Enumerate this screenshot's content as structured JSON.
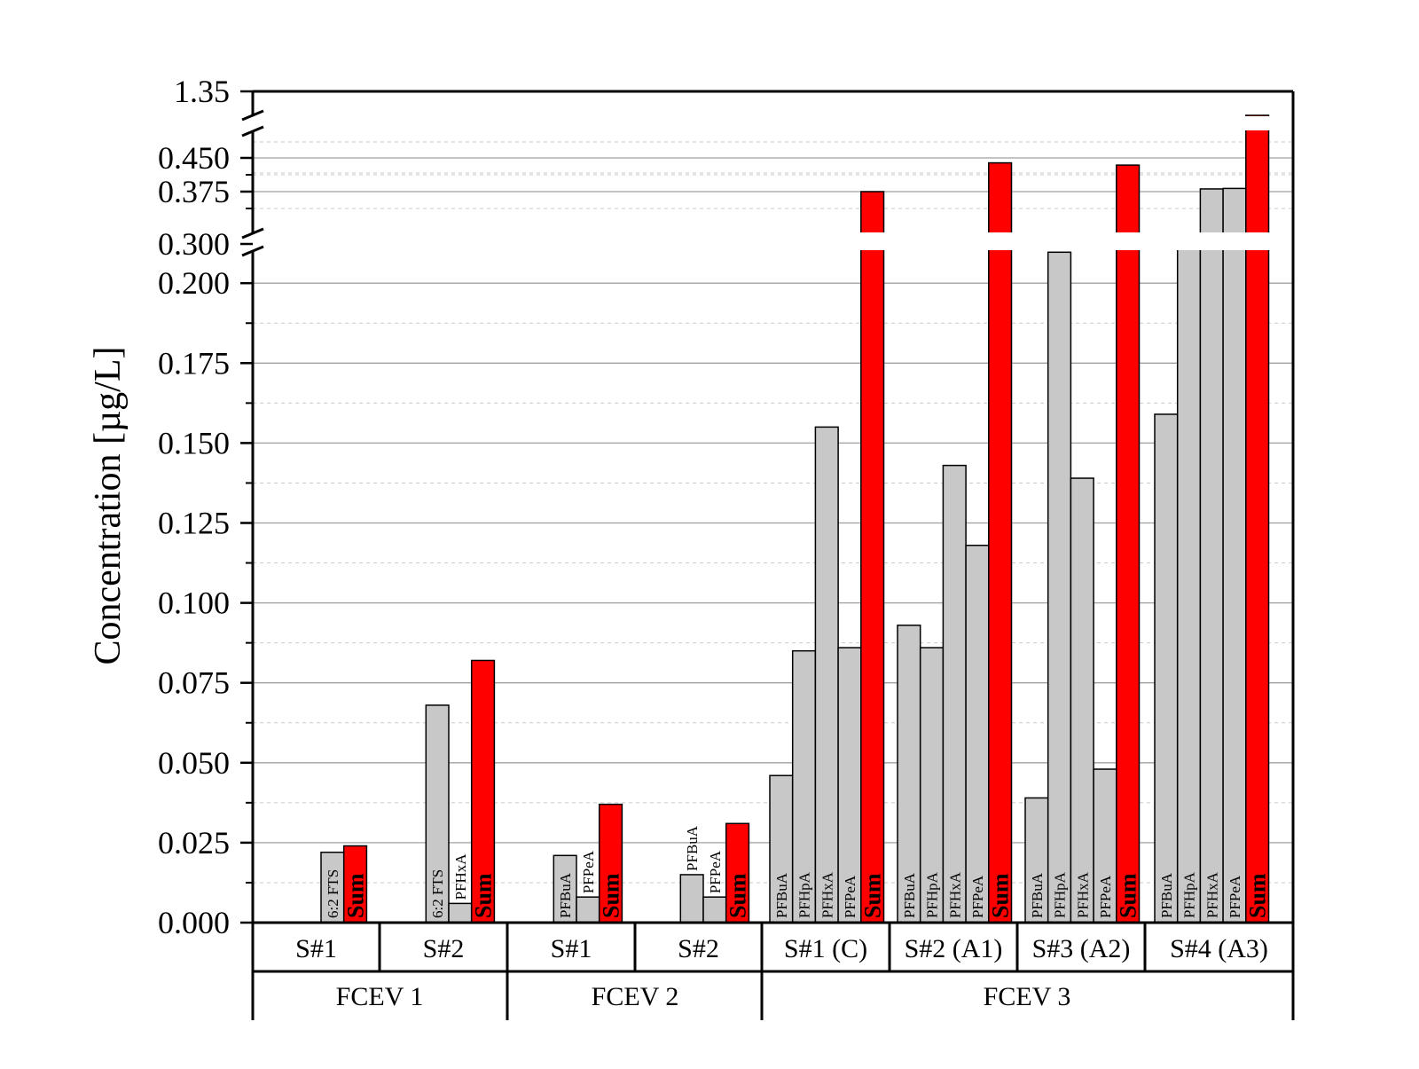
{
  "chart_data": {
    "type": "bar",
    "title": "",
    "ylabel": "Concentration [µg/L]",
    "ylim": [
      0,
      1.35
    ],
    "axis_breaks": [
      [
        0.2,
        0.3
      ],
      [
        0.45,
        1.35
      ]
    ],
    "y_ticks_lower": [
      "0.000",
      "0.025",
      "0.050",
      "0.075",
      "0.100",
      "0.125",
      "0.150",
      "0.175",
      "0.200"
    ],
    "y_ticks_middle": [
      "0.300",
      "0.375",
      "0.450"
    ],
    "y_ticks_upper": [
      "1.35"
    ],
    "colors": {
      "compound": "#c8c8c8",
      "sum": "#ff0000",
      "grid": "#9a9a9a"
    },
    "groups": [
      {
        "label": "FCEV 1",
        "samples": [
          {
            "label": "S#1",
            "bars": [
              {
                "name": "6:2 FTS",
                "value": 0.022
              },
              {
                "name": "Sum",
                "value": 0.024
              }
            ]
          },
          {
            "label": "S#2",
            "bars": [
              {
                "name": "6:2 FTS",
                "value": 0.068
              },
              {
                "name": "PFHxA",
                "value": 0.006
              },
              {
                "name": "Sum",
                "value": 0.082
              }
            ]
          }
        ]
      },
      {
        "label": "FCEV 2",
        "samples": [
          {
            "label": "S#1",
            "bars": [
              {
                "name": "PFBuA",
                "value": 0.021
              },
              {
                "name": "PFPeA",
                "value": 0.008
              },
              {
                "name": "Sum",
                "value": 0.037
              }
            ]
          },
          {
            "label": "S#2",
            "bars": [
              {
                "name": "PFBuA",
                "value": 0.015
              },
              {
                "name": "PFPeA",
                "value": 0.008
              },
              {
                "name": "Sum",
                "value": 0.031
              }
            ]
          }
        ]
      },
      {
        "label": "FCEV 3",
        "samples": [
          {
            "label": "S#1 (C)",
            "bars": [
              {
                "name": "PFBuA",
                "value": 0.046
              },
              {
                "name": "PFHpA",
                "value": 0.085
              },
              {
                "name": "PFHxA",
                "value": 0.155
              },
              {
                "name": "PFPeA",
                "value": 0.086
              },
              {
                "name": "Sum",
                "value": 0.375
              }
            ]
          },
          {
            "label": "S#2 (A1)",
            "bars": [
              {
                "name": "PFBuA",
                "value": 0.093
              },
              {
                "name": "PFHpA",
                "value": 0.086
              },
              {
                "name": "PFHxA",
                "value": 0.143
              },
              {
                "name": "PFPeA",
                "value": 0.118
              },
              {
                "name": "Sum",
                "value": 0.439
              }
            ]
          },
          {
            "label": "S#3 (A2)",
            "bars": [
              {
                "name": "PFBuA",
                "value": 0.039
              },
              {
                "name": "PFHpA",
                "value": 0.207
              },
              {
                "name": "PFHxA",
                "value": 0.139
              },
              {
                "name": "PFPeA",
                "value": 0.048
              },
              {
                "name": "Sum",
                "value": 0.434
              }
            ]
          },
          {
            "label": "S#4 (A3)",
            "bars": [
              {
                "name": "PFBuA",
                "value": 0.159
              },
              {
                "name": "PFHpA",
                "value": 0.288
              },
              {
                "name": "PFHxA",
                "value": 0.381
              },
              {
                "name": "PFPeA",
                "value": 0.496
              },
              {
                "name": "Sum",
                "value": 1.32
              }
            ]
          }
        ]
      }
    ]
  }
}
